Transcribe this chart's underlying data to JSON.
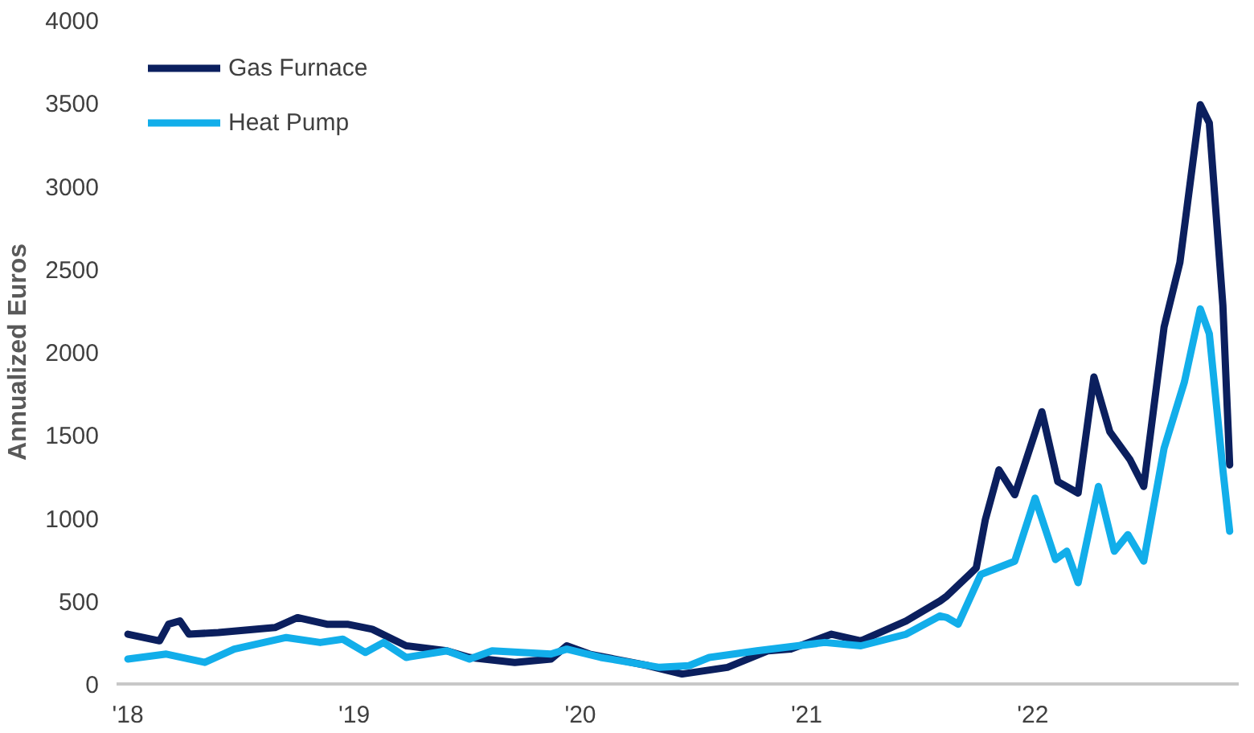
{
  "chart_data": {
    "type": "line",
    "ylabel": "Annualized Euros",
    "xlim": [
      2017.95,
      2022.91
    ],
    "ylim": [
      0,
      4000
    ],
    "xticks": [
      {
        "value": 2018,
        "label": "'18"
      },
      {
        "value": 2019,
        "label": "'19"
      },
      {
        "value": 2020,
        "label": "'20"
      },
      {
        "value": 2021,
        "label": "'21"
      },
      {
        "value": 2022,
        "label": "'22"
      }
    ],
    "yticks": [
      0,
      500,
      1000,
      1500,
      2000,
      2500,
      3000,
      3500,
      4000
    ],
    "grid": false,
    "legend": "top left",
    "line_style": "solid",
    "series": [
      {
        "name": "Gas Furnace",
        "color": "#0b1f5e",
        "x": [
          2018.0,
          2018.14,
          2018.18,
          2018.23,
          2018.27,
          2018.4,
          2018.65,
          2018.75,
          2018.88,
          2018.97,
          2019.08,
          2019.23,
          2019.41,
          2019.51,
          2019.71,
          2019.87,
          2019.94,
          2020.04,
          2020.3,
          2020.45,
          2020.65,
          2020.83,
          2020.93,
          2021.11,
          2021.24,
          2021.44,
          2021.59,
          2021.62,
          2021.72,
          2021.75,
          2021.79,
          2021.85,
          2021.92,
          2022.04,
          2022.11,
          2022.2,
          2022.27,
          2022.34,
          2022.43,
          2022.49,
          2022.58,
          2022.65,
          2022.74,
          2022.78,
          2022.84,
          2022.87
        ],
        "values": [
          300,
          260,
          360,
          380,
          300,
          310,
          340,
          400,
          360,
          360,
          330,
          230,
          200,
          160,
          130,
          150,
          230,
          180,
          110,
          60,
          100,
          200,
          210,
          300,
          260,
          380,
          500,
          530,
          660,
          700,
          990,
          1290,
          1140,
          1640,
          1220,
          1150,
          1850,
          1520,
          1350,
          1190,
          2150,
          2540,
          3490,
          3380,
          2280,
          1320
        ]
      },
      {
        "name": "Heat Pump",
        "color": "#12aeea",
        "x": [
          2018.0,
          2018.17,
          2018.34,
          2018.47,
          2018.7,
          2018.85,
          2018.95,
          2019.05,
          2019.13,
          2019.23,
          2019.41,
          2019.51,
          2019.61,
          2019.87,
          2019.94,
          2020.09,
          2020.35,
          2020.48,
          2020.57,
          2020.78,
          2021.08,
          2021.24,
          2021.44,
          2021.59,
          2021.62,
          2021.67,
          2021.77,
          2021.92,
          2022.01,
          2022.1,
          2022.15,
          2022.2,
          2022.29,
          2022.36,
          2022.42,
          2022.49,
          2022.58,
          2022.67,
          2022.74,
          2022.78,
          2022.84,
          2022.87
        ],
        "values": [
          150,
          180,
          130,
          210,
          280,
          250,
          270,
          190,
          250,
          160,
          200,
          150,
          200,
          180,
          210,
          160,
          100,
          110,
          160,
          200,
          250,
          230,
          300,
          410,
          400,
          360,
          660,
          740,
          1120,
          750,
          800,
          610,
          1190,
          800,
          900,
          740,
          1420,
          1820,
          2260,
          2110,
          1290,
          920
        ]
      }
    ]
  }
}
